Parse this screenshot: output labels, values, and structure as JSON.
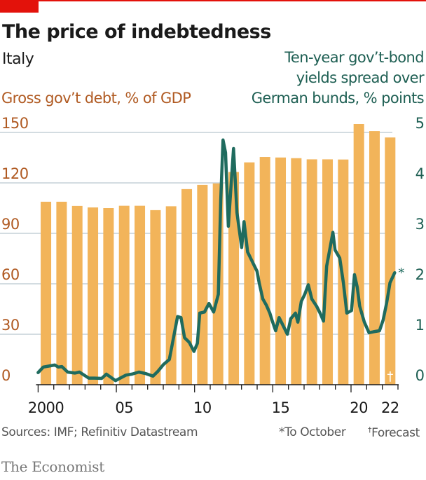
{
  "colors": {
    "accent_red": "#E3120B",
    "bar": "#F2B45A",
    "line": "#1F6B5E",
    "left_axis_text": "#B05A22",
    "right_axis_text": "#1E5F53",
    "grid": "#B9C6CF",
    "axis": "#1a1a1a"
  },
  "header": {
    "title": "The price of indebtedness",
    "subtitle": "Italy"
  },
  "footer": {
    "source": "Sources: IMF; Refinitiv Datastream",
    "footnote_asterisk": "*To October",
    "footnote_dagger_symbol": "†",
    "footnote_dagger_text": "Forecast",
    "brand": "The Economist"
  },
  "chart_data": {
    "type": "bar+line",
    "title": "The price of indebtedness",
    "subtitle": "Italy",
    "categories": [
      2000,
      2001,
      2002,
      2003,
      2004,
      2005,
      2006,
      2007,
      2008,
      2009,
      2010,
      2011,
      2012,
      2013,
      2014,
      2015,
      2016,
      2017,
      2018,
      2019,
      2020,
      2021,
      2022
    ],
    "x_tick_labels": [
      {
        "year": 2000,
        "label": "2000"
      },
      {
        "year": 2005,
        "label": "05"
      },
      {
        "year": 2010,
        "label": "10"
      },
      {
        "year": 2015,
        "label": "15"
      },
      {
        "year": 2020,
        "label": "20"
      },
      {
        "year": 2022,
        "label": "22"
      }
    ],
    "left_axis": {
      "label": "Gross gov’t debt, % of GDP",
      "ylim": [
        0,
        150
      ],
      "ticks": [
        0,
        30,
        60,
        90,
        120,
        150
      ]
    },
    "right_axis": {
      "label_lines": [
        "Ten-year gov’t-bond",
        "yields spread over",
        "German bunds, % points"
      ],
      "ylim": [
        0,
        5
      ],
      "ticks": [
        0,
        1,
        2,
        3,
        4,
        5
      ]
    },
    "grid": true,
    "series": [
      {
        "name": "Gross gov’t debt, % of GDP",
        "type": "bar",
        "axis": "left",
        "values": [
          108.8,
          108.8,
          106.3,
          105.4,
          105.0,
          106.4,
          106.4,
          103.8,
          106.1,
          116.3,
          118.8,
          119.7,
          126.5,
          132.2,
          135.4,
          135.1,
          134.7,
          134.0,
          134.0,
          133.9,
          155.0,
          150.8,
          147.0
        ],
        "annotations": [
          {
            "year": 2022,
            "mark": "†",
            "meaning": "Forecast"
          }
        ]
      },
      {
        "name": "Ten-year gov’t-bond yields spread over German bunds, % points",
        "type": "line",
        "axis": "right",
        "end_annotation": "*",
        "points": [
          [
            2000.0,
            0.24
          ],
          [
            2000.33,
            0.35
          ],
          [
            2000.7,
            0.37
          ],
          [
            2001.07,
            0.39
          ],
          [
            2001.29,
            0.35
          ],
          [
            2001.52,
            0.36
          ],
          [
            2001.89,
            0.25
          ],
          [
            2002.34,
            0.23
          ],
          [
            2002.64,
            0.25
          ],
          [
            2003.24,
            0.13
          ],
          [
            2003.61,
            0.13
          ],
          [
            2004.06,
            0.125
          ],
          [
            2004.36,
            0.21
          ],
          [
            2004.95,
            0.08
          ],
          [
            2005.25,
            0.13
          ],
          [
            2005.62,
            0.19
          ],
          [
            2006.0,
            0.21
          ],
          [
            2006.44,
            0.25
          ],
          [
            2006.89,
            0.22
          ],
          [
            2007.34,
            0.17
          ],
          [
            2007.64,
            0.26
          ],
          [
            2008.01,
            0.4
          ],
          [
            2008.39,
            0.5
          ],
          [
            2008.91,
            1.35
          ],
          [
            2009.13,
            1.33
          ],
          [
            2009.36,
            0.93
          ],
          [
            2009.66,
            0.84
          ],
          [
            2009.96,
            0.66
          ],
          [
            2010.18,
            0.82
          ],
          [
            2010.33,
            1.42
          ],
          [
            2010.63,
            1.44
          ],
          [
            2010.92,
            1.61
          ],
          [
            2011.22,
            1.44
          ],
          [
            2011.52,
            1.79
          ],
          [
            2011.67,
            3.64
          ],
          [
            2011.82,
            4.85
          ],
          [
            2011.98,
            4.6
          ],
          [
            2012.16,
            3.14
          ],
          [
            2012.49,
            4.68
          ],
          [
            2012.71,
            3.41
          ],
          [
            2013.01,
            2.72
          ],
          [
            2013.16,
            3.23
          ],
          [
            2013.39,
            2.63
          ],
          [
            2013.61,
            2.49
          ],
          [
            2013.99,
            2.25
          ],
          [
            2014.13,
            2.02
          ],
          [
            2014.36,
            1.7
          ],
          [
            2014.58,
            1.58
          ],
          [
            2014.81,
            1.42
          ],
          [
            2014.95,
            1.28
          ],
          [
            2015.18,
            1.07
          ],
          [
            2015.4,
            1.33
          ],
          [
            2015.63,
            1.19
          ],
          [
            2015.93,
            1.0
          ],
          [
            2016.15,
            1.31
          ],
          [
            2016.45,
            1.42
          ],
          [
            2016.6,
            1.24
          ],
          [
            2016.82,
            1.65
          ],
          [
            2017.04,
            1.79
          ],
          [
            2017.27,
            1.98
          ],
          [
            2017.49,
            1.7
          ],
          [
            2017.79,
            1.56
          ],
          [
            2018.02,
            1.42
          ],
          [
            2018.24,
            1.26
          ],
          [
            2018.44,
            2.35
          ],
          [
            2018.61,
            2.63
          ],
          [
            2018.84,
            3.02
          ],
          [
            2018.98,
            2.67
          ],
          [
            2019.28,
            2.51
          ],
          [
            2019.51,
            2.02
          ],
          [
            2019.73,
            1.42
          ],
          [
            2020.03,
            1.47
          ],
          [
            2020.22,
            2.18
          ],
          [
            2020.4,
            1.93
          ],
          [
            2020.55,
            1.56
          ],
          [
            2020.85,
            1.24
          ],
          [
            2021.15,
            1.03
          ],
          [
            2021.45,
            1.05
          ],
          [
            2021.82,
            1.07
          ],
          [
            2022.05,
            1.28
          ],
          [
            2022.27,
            1.61
          ],
          [
            2022.49,
            2.02
          ],
          [
            2022.79,
            2.22
          ]
        ]
      }
    ]
  }
}
